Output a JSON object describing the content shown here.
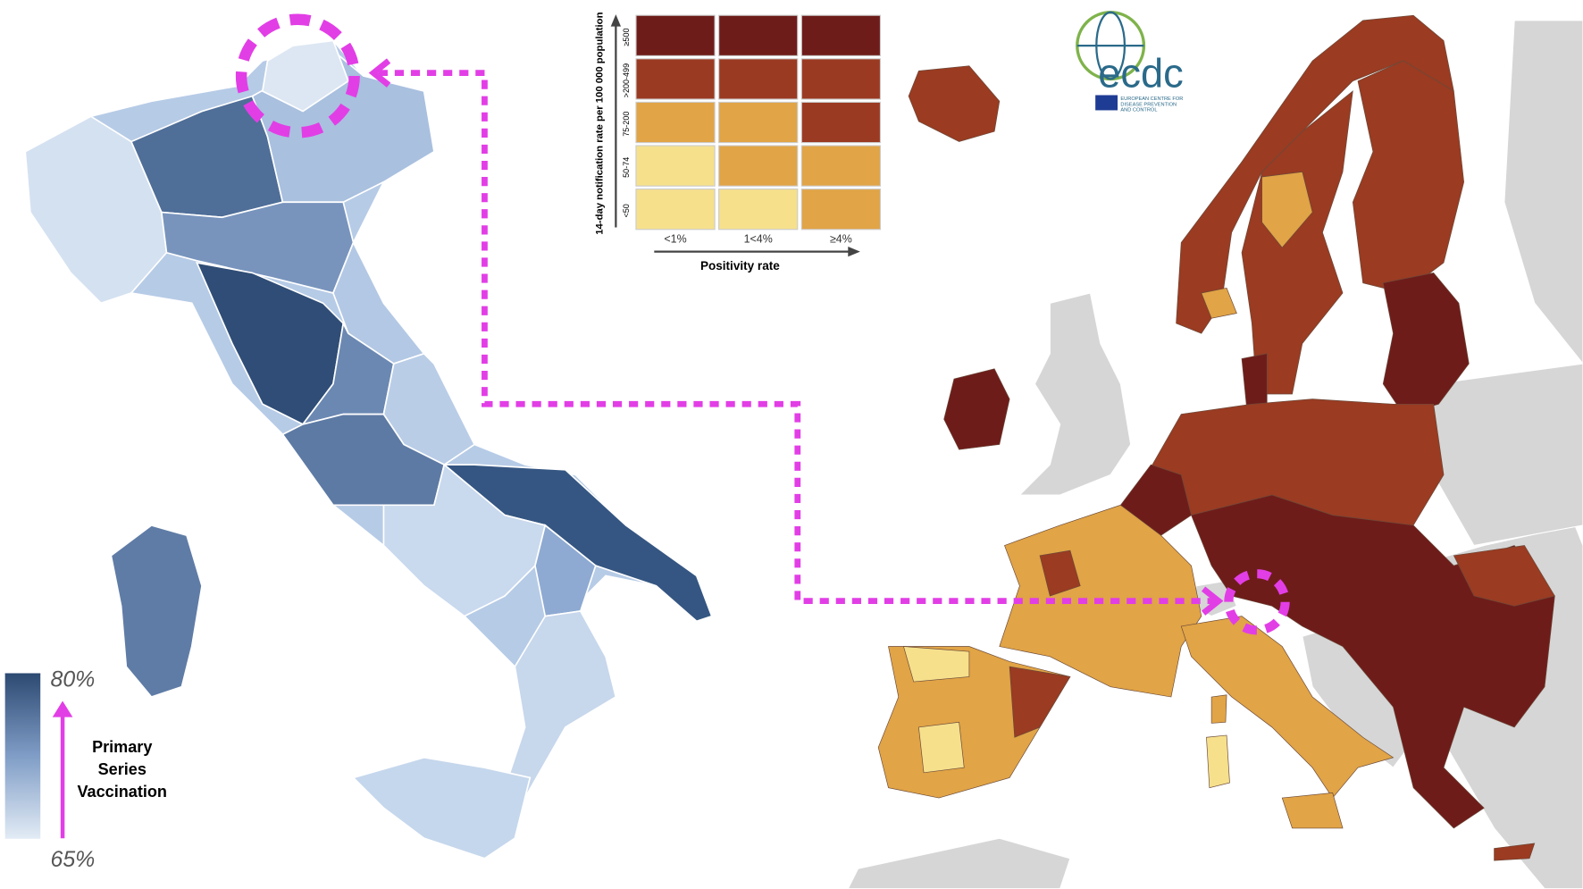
{
  "legend": {
    "max": {
      "value": 80,
      "label": "80%"
    },
    "min": {
      "value": 65,
      "label": "65%"
    },
    "caption_lines": [
      "Primary",
      "Series",
      "Vaccination"
    ]
  },
  "matrix": {
    "y_label": "14-day notification rate per 100 000 population",
    "row_labels": [
      "≥500",
      ">200-499",
      "75-200",
      "50-74",
      "<50"
    ],
    "col_labels": [
      "<1%",
      "1<4%",
      "≥4%"
    ],
    "x_label": "Positivity rate",
    "cells": [
      [
        "#6e1c1a",
        "#6e1c1a",
        "#6e1c1a"
      ],
      [
        "#9b3a22",
        "#9b3a22",
        "#9b3a22"
      ],
      [
        "#e1a446",
        "#e1a446",
        "#9b3a22"
      ],
      [
        "#f6e08c",
        "#e1a446",
        "#e1a446"
      ],
      [
        "#f6e08c",
        "#f6e08c",
        "#e1a446"
      ]
    ]
  },
  "logo": {
    "name": "ecdc",
    "subtitle_lines": [
      "EUROPEAN CENTRE FOR",
      "DISEASE PREVENTION",
      "AND CONTROL"
    ]
  }
}
